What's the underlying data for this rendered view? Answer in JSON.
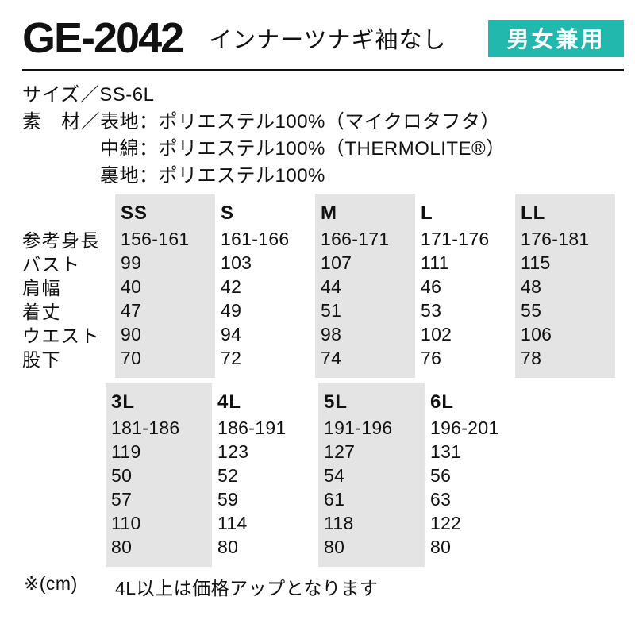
{
  "header": {
    "product_code": "GE-2042",
    "product_name": "インナーツナギ袖なし",
    "badge": "男女兼用"
  },
  "specs": {
    "size_line": "サイズ／SS-6L",
    "material_label": "素　材／",
    "materials": [
      "表地：ポリエステル100%（マイクロタフタ）",
      "中綿：ポリエステル100%（THERMOLITE®）",
      "裏地：ポリエステル100%"
    ]
  },
  "size_table_1": {
    "row_labels": [
      "参考身長",
      "バスト",
      "肩幅",
      "着丈",
      "ウエスト",
      "股下"
    ],
    "columns": [
      {
        "size": "SS",
        "shaded": true,
        "values": [
          "156-161",
          "99",
          "40",
          "47",
          "90",
          "70"
        ]
      },
      {
        "size": "S",
        "shaded": false,
        "values": [
          "161-166",
          "103",
          "42",
          "49",
          "94",
          "72"
        ]
      },
      {
        "size": "M",
        "shaded": true,
        "values": [
          "166-171",
          "107",
          "44",
          "51",
          "98",
          "74"
        ]
      },
      {
        "size": "L",
        "shaded": false,
        "values": [
          "171-176",
          "111",
          "46",
          "53",
          "102",
          "76"
        ]
      },
      {
        "size": "LL",
        "shaded": true,
        "values": [
          "176-181",
          "115",
          "48",
          "55",
          "106",
          "78"
        ]
      }
    ]
  },
  "size_table_2": {
    "columns": [
      {
        "size": "3L",
        "shaded": true,
        "values": [
          "181-186",
          "119",
          "50",
          "57",
          "110",
          "80"
        ]
      },
      {
        "size": "4L",
        "shaded": false,
        "values": [
          "186-191",
          "123",
          "52",
          "59",
          "114",
          "80"
        ]
      },
      {
        "size": "5L",
        "shaded": true,
        "values": [
          "191-196",
          "127",
          "54",
          "61",
          "118",
          "80"
        ]
      },
      {
        "size": "6L",
        "shaded": false,
        "values": [
          "196-201",
          "131",
          "56",
          "63",
          "122",
          "80"
        ]
      }
    ]
  },
  "footer": {
    "unit_note": "※(cm)",
    "price_note": "4L以上は価格アップとなります"
  },
  "colors": {
    "badge_background": "#23b8ad",
    "shaded_column": "#e4e4e4",
    "text": "#111111"
  }
}
